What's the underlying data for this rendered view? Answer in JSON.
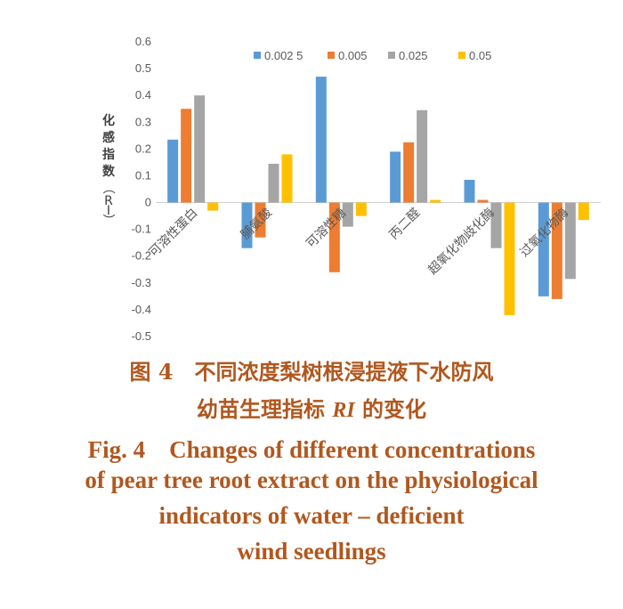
{
  "chart_data": {
    "type": "bar",
    "ylabel": "化感指数（RI）",
    "ylim": [
      -0.5,
      0.6
    ],
    "yticks": [
      "0.6",
      "0.5",
      "0.4",
      "0.3",
      "0.2",
      "0.1",
      "0",
      "-0.1",
      "-0.2",
      "-0.3",
      "-0.4",
      "-0.5"
    ],
    "categories": [
      "可溶性蛋白",
      "脯氨酸",
      "可溶性糖",
      "丙二醛",
      "超氧化物歧化酶",
      "过氧化物酶"
    ],
    "legend_position": "top",
    "grid": false,
    "series": [
      {
        "name": "0.002 5",
        "color": "#5b9bd5",
        "values": [
          0.235,
          -0.17,
          0.47,
          0.19,
          0.085,
          -0.35
        ]
      },
      {
        "name": "0.005",
        "color": "#ed7d31",
        "values": [
          0.35,
          -0.13,
          -0.26,
          0.225,
          0.01,
          -0.36
        ]
      },
      {
        "name": "0.025",
        "color": "#a5a5a5",
        "values": [
          0.4,
          0.145,
          -0.09,
          0.345,
          -0.17,
          -0.285
        ]
      },
      {
        "name": "0.05",
        "color": "#ffc000",
        "values": [
          -0.03,
          0.18,
          -0.05,
          0.01,
          -0.42,
          -0.065
        ]
      }
    ]
  },
  "caption": {
    "cn_line1": "图 4　不同浓度梨树根浸提液下水防风",
    "cn_line2_a": "幼苗生理指标 ",
    "cn_line2_ri": "RI",
    "cn_line2_b": " 的变化",
    "en_line1": "Fig. 4　Changes of different concentrations",
    "en_line2": "of pear tree root extract on the physiological",
    "en_line3": "indicators of water – deficient",
    "en_line4": "wind seedlings"
  }
}
